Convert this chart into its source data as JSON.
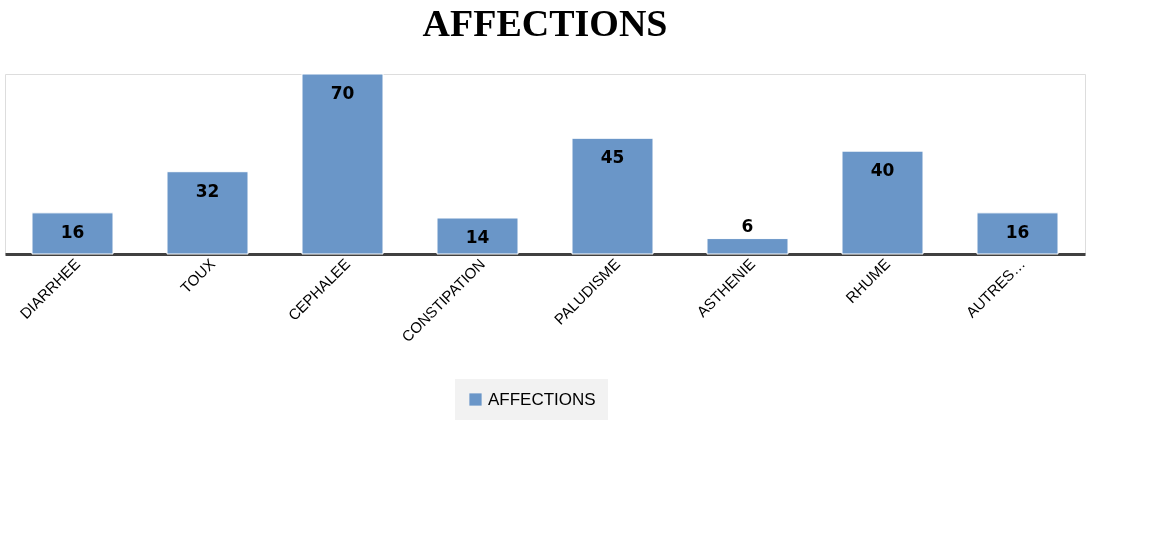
{
  "chart_data": {
    "type": "bar",
    "title": "AFFECTIONS",
    "categories": [
      "DIARRHEE",
      "TOUX",
      "CEPHALEE",
      "CONSTIPATION",
      "PALUDISME",
      "ASTHENIE",
      "RHUME",
      "AUTRES…"
    ],
    "series": [
      {
        "name": "AFFECTIONS",
        "color": "#6a96c8",
        "values": [
          16,
          32,
          70,
          14,
          45,
          6,
          40,
          16
        ]
      }
    ],
    "data_labels": true,
    "legend": "bottom",
    "grid": false
  }
}
